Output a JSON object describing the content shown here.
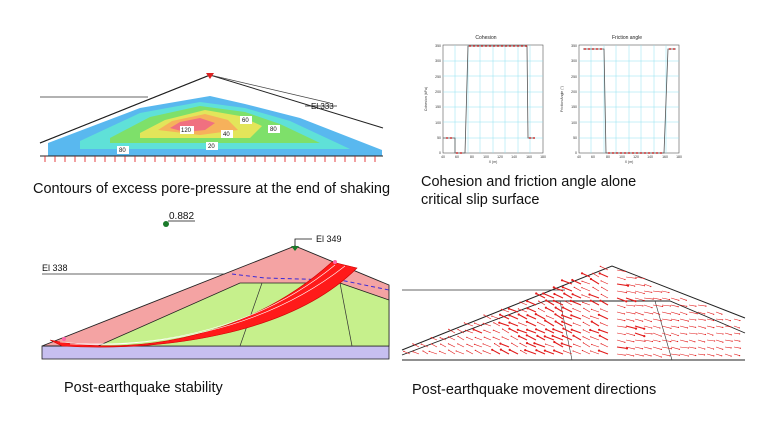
{
  "panels": {
    "pore_pressure": {
      "caption": "Contours of excess pore-pressure at the end of shaking",
      "elevation_label": "El 333",
      "contour_labels": [
        "60",
        "120",
        "40",
        "80",
        "80",
        "20"
      ]
    },
    "strength": {
      "caption_line1": "Cohesion and friction angle alone",
      "caption_line2": "critical slip surface",
      "cohesion_title": "Cohesion",
      "friction_title": "Friction angle",
      "cohesion_ylabel": "Cohesion (kPa)",
      "friction_ylabel": "Friction Angle (°)",
      "x_label": "X (m)",
      "x_ticks": [
        "40",
        "60",
        "80",
        "100",
        "120",
        "140",
        "160",
        "180"
      ],
      "y_ticks": [
        "0",
        "50",
        "100",
        "150",
        "200",
        "250",
        "300",
        "350"
      ]
    },
    "stability": {
      "caption": "Post-earthquake stability",
      "factor_of_safety": "0.882",
      "crest_label": "El 349",
      "water_label": "El 338"
    },
    "movement": {
      "caption": "Post-earthquake movement directions"
    }
  },
  "colors": {
    "shell": "#f4a3a3",
    "core": "#c6f08c",
    "foundation": "#c7bff0",
    "slip": "#ff1a1a",
    "arrows": "#e21b1b",
    "grid": "#8fe0f0",
    "water": "#3a2ad6"
  }
}
